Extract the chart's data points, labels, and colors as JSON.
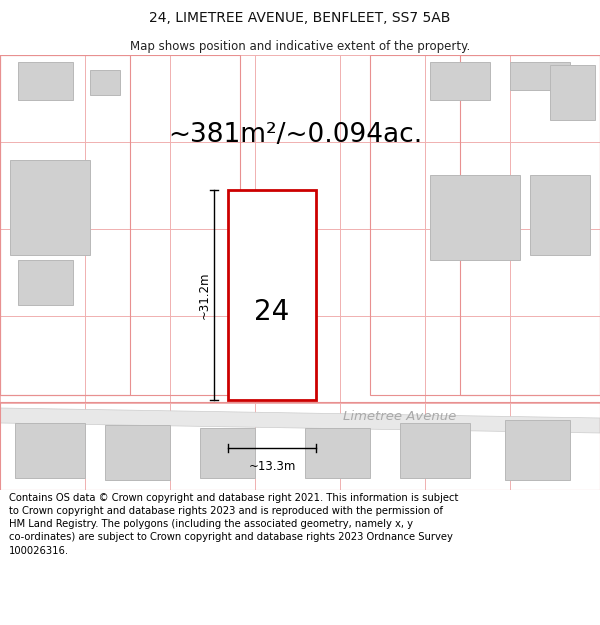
{
  "title": "24, LIMETREE AVENUE, BENFLEET, SS7 5AB",
  "subtitle": "Map shows position and indicative extent of the property.",
  "area_label": "~381m²/~0.094ac.",
  "property_number": "24",
  "dim_width": "~13.3m",
  "dim_height": "~31.2m",
  "street_name": "Limetree Avenue",
  "footer_text": "Contains OS data © Crown copyright and database right 2021. This information is subject to Crown copyright and database rights 2023 and is reproduced with the permission of HM Land Registry. The polygons (including the associated geometry, namely x, y co-ordinates) are subject to Crown copyright and database rights 2023 Ordnance Survey 100026316.",
  "bg_color": "#ffffff",
  "plot_color": "#fafafa",
  "road_color": "#e8e8e8",
  "road_edge_color": "#cccccc",
  "grid_color": "#f0b0b0",
  "building_fill": "#d0d0d0",
  "building_stroke": "#b8b8b8",
  "plot_outline_color": "#e89090",
  "highlight_fill": "#ffffff",
  "highlight_stroke": "#cc0000",
  "title_fontsize": 10,
  "subtitle_fontsize": 8.5,
  "area_fontsize": 19,
  "number_fontsize": 20,
  "dim_fontsize": 8.5,
  "street_fontsize": 9.5,
  "footer_fontsize": 7.2,
  "title_color": "#111111",
  "subtitle_color": "#222222",
  "street_color": "#aaaaaa",
  "dim_color": "#000000"
}
